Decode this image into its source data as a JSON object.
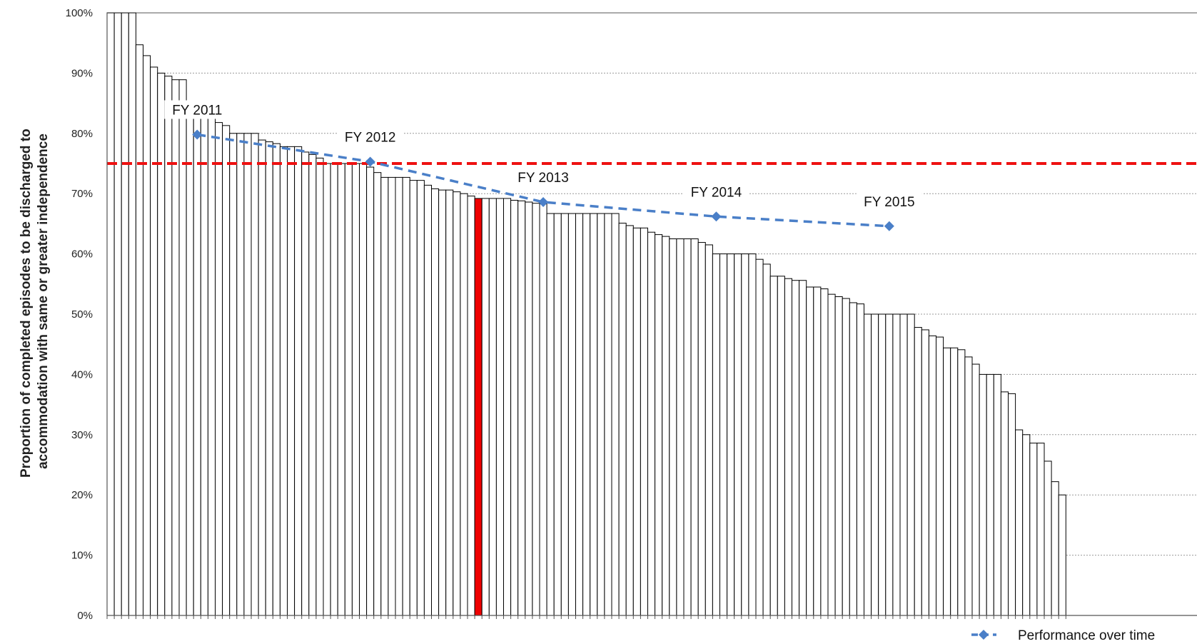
{
  "chart_data": {
    "type": "bar",
    "ylabel_lines": [
      "Proportion of completed episodes to be discharged to",
      "accommodation with same or greater independence"
    ],
    "ylim": [
      0,
      100
    ],
    "yticks": [
      "0%",
      "10%",
      "20%",
      "30%",
      "40%",
      "50%",
      "60%",
      "70%",
      "80%",
      "90%",
      "100%"
    ],
    "grid": true,
    "highlight_index": 51,
    "colors": {
      "bar_fill": "#ffffff",
      "bar_stroke": "#000000",
      "highlight": "#ee0000",
      "target": "#ee1111",
      "trend": "#4a7fc8",
      "grid": "#999999"
    },
    "values": [
      100,
      100,
      100,
      100,
      94.7,
      92.9,
      91,
      90,
      89.5,
      88.9,
      88.9,
      85,
      83.3,
      83.3,
      83.3,
      81.8,
      81.3,
      80,
      80,
      80,
      80,
      78.9,
      78.6,
      78.3,
      77.8,
      77.8,
      77.8,
      76.9,
      76.5,
      75.9,
      75,
      75,
      75,
      75,
      75,
      75,
      74.4,
      73.5,
      72.7,
      72.7,
      72.7,
      72.7,
      72.2,
      72.2,
      71.4,
      70.8,
      70.6,
      70.6,
      70.3,
      70,
      69.6,
      69.2,
      69.2,
      69.2,
      69.2,
      69.2,
      68.9,
      68.8,
      68.6,
      68.4,
      68.3,
      66.7,
      66.7,
      66.7,
      66.7,
      66.7,
      66.7,
      66.7,
      66.7,
      66.7,
      66.7,
      65.1,
      64.7,
      64.3,
      64.3,
      63.6,
      63.2,
      62.9,
      62.5,
      62.5,
      62.5,
      62.5,
      61.9,
      61.5,
      60,
      60,
      60,
      60,
      60,
      60,
      59.1,
      58.3,
      56.3,
      56.3,
      55.9,
      55.6,
      55.6,
      54.5,
      54.5,
      54.2,
      53.3,
      52.9,
      52.6,
      51.9,
      51.7,
      50,
      50,
      50,
      50,
      50,
      50,
      50,
      47.8,
      47.4,
      46.4,
      46.2,
      44.4,
      44.4,
      44.1,
      42.9,
      41.7,
      40,
      40,
      40,
      37.1,
      36.8,
      30.8,
      30,
      28.6,
      28.6,
      25.6,
      22.2,
      20
    ],
    "target_line": {
      "value": 75
    },
    "series": [
      {
        "name": "Performance over time",
        "type": "line",
        "points": [
          {
            "label": "FY 2011",
            "bar_index": 12,
            "value": 79.8
          },
          {
            "label": "FY 2012",
            "bar_index": 36,
            "value": 75.3
          },
          {
            "label": "FY 2013",
            "bar_index": 60,
            "value": 68.6
          },
          {
            "label": "FY 2014",
            "bar_index": 84,
            "value": 66.2
          },
          {
            "label": "FY 2015",
            "bar_index": 108,
            "value": 64.6
          }
        ]
      }
    ],
    "legend_position": "bottom-right"
  }
}
